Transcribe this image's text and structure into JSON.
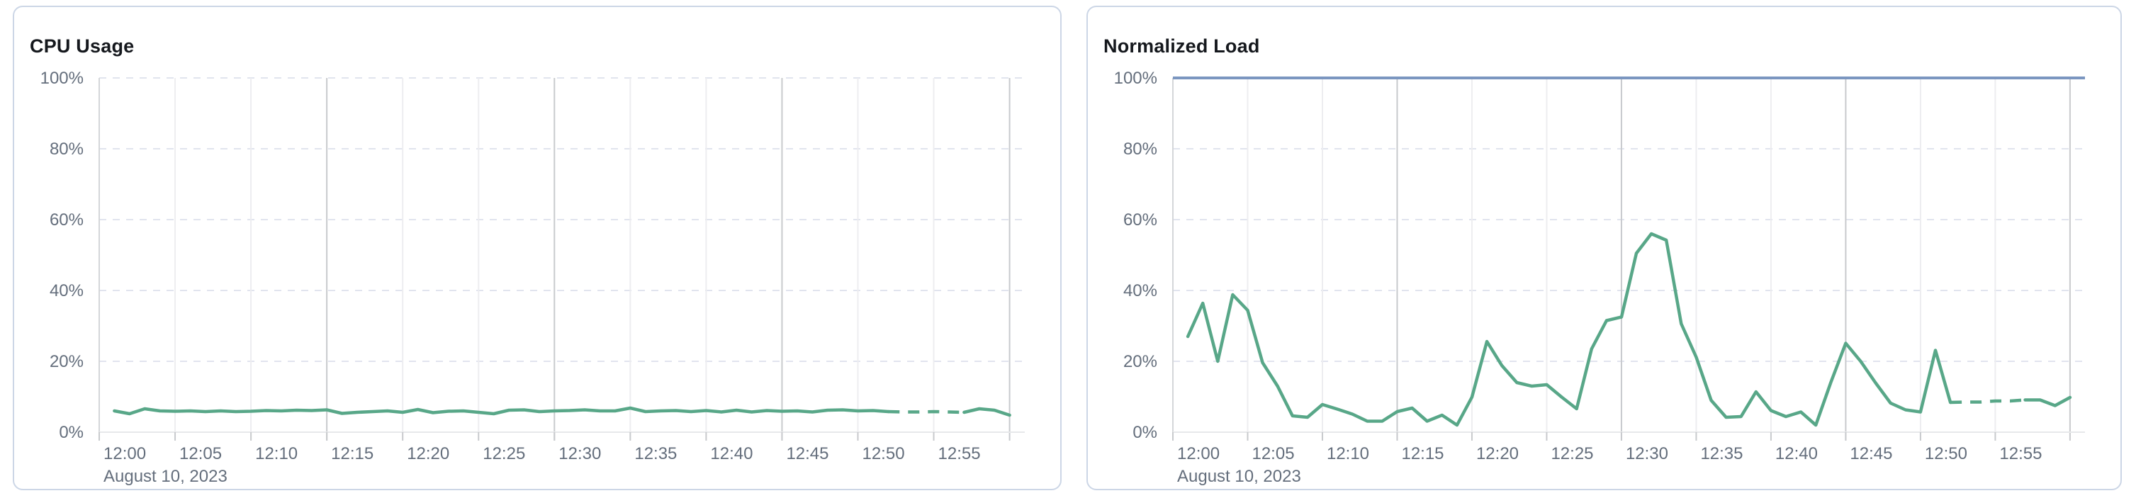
{
  "page": {
    "background": "#ffffff"
  },
  "cards": [
    {
      "title": "CPU Usage",
      "chart_data": {
        "type": "line",
        "title": "CPU Usage",
        "x": {
          "tick_labels": [
            "12:00",
            "12:05",
            "12:10",
            "12:15",
            "12:20",
            "12:25",
            "12:30",
            "12:35",
            "12:40",
            "12:45",
            "12:50",
            "12:55"
          ],
          "tick_interval_min": 5,
          "major_ticks_min": [
            15,
            30,
            45,
            60
          ],
          "end_minute": 60,
          "date_label": "August 10, 2023"
        },
        "y": {
          "min": 0,
          "max": 100,
          "tick_values": [
            0,
            20,
            40,
            60,
            80,
            100
          ],
          "tick_labels": [
            "0%",
            "20%",
            "40%",
            "60%",
            "80%",
            "100%"
          ],
          "gridlines": "dashed"
        },
        "series": [
          {
            "name": "cpu-usage",
            "color": "#58a788",
            "start_minute": 1,
            "step_min": 1,
            "dash_between_minutes": [
              52,
              57
            ],
            "values": [
              6.0,
              5.2,
              6.6,
              6.0,
              5.9,
              6.0,
              5.8,
              6.0,
              5.8,
              5.9,
              6.1,
              6.0,
              6.2,
              6.1,
              6.3,
              5.3,
              5.6,
              5.8,
              6.0,
              5.6,
              6.4,
              5.5,
              5.9,
              6.0,
              5.6,
              5.2,
              6.2,
              6.3,
              5.8,
              6.0,
              6.1,
              6.3,
              6.0,
              6.0,
              6.8,
              5.8,
              6.0,
              6.1,
              5.8,
              6.1,
              5.7,
              6.2,
              5.7,
              6.1,
              5.9,
              6.0,
              5.7,
              6.2,
              6.3,
              6.0,
              6.1,
              5.8,
              5.7,
              5.7,
              5.8,
              5.7,
              5.6,
              6.6,
              6.2,
              4.8
            ]
          }
        ]
      }
    },
    {
      "title": "Normalized Load",
      "chart_data": {
        "type": "line",
        "title": "Normalized Load",
        "x": {
          "tick_labels": [
            "12:00",
            "12:05",
            "12:10",
            "12:15",
            "12:20",
            "12:25",
            "12:30",
            "12:35",
            "12:40",
            "12:45",
            "12:50",
            "12:55"
          ],
          "tick_interval_min": 5,
          "major_ticks_min": [
            15,
            30,
            45,
            60
          ],
          "end_minute": 60,
          "date_label": "August 10, 2023"
        },
        "y": {
          "min": 0,
          "max": 100,
          "tick_values": [
            0,
            20,
            40,
            60,
            80,
            100
          ],
          "tick_labels": [
            "0%",
            "20%",
            "40%",
            "60%",
            "80%",
            "100%"
          ],
          "gridlines": "dashed"
        },
        "series": [
          {
            "name": "normalized-load",
            "color": "#58a788",
            "start_minute": 1,
            "step_min": 1,
            "dash_between_minutes": [
              52,
              57
            ],
            "values": [
              27,
              36.4,
              20,
              38.8,
              34.4,
              19.6,
              13,
              4.6,
              4.2,
              7.8,
              6.5,
              5.1,
              3.1,
              3.1,
              5.8,
              6.8,
              3.1,
              4.8,
              2,
              9.9,
              25.6,
              18.8,
              14,
              13,
              13.4,
              9.9,
              6.6,
              23.5,
              31.5,
              32.5,
              50.5,
              56,
              54.2,
              30.6,
              21.2,
              9,
              4.2,
              4.4,
              11.4,
              6.1,
              4.4,
              5.7,
              2,
              14,
              25.1,
              20,
              13.9,
              8.2,
              6.3,
              5.7,
              23.1,
              8.4,
              8.5,
              8.5,
              8.8,
              8.8,
              9.1,
              9.1,
              7.5,
              9.8
            ]
          },
          {
            "name": "limit-line",
            "color": "#7b96c0",
            "constant_value": 100
          }
        ]
      }
    }
  ]
}
